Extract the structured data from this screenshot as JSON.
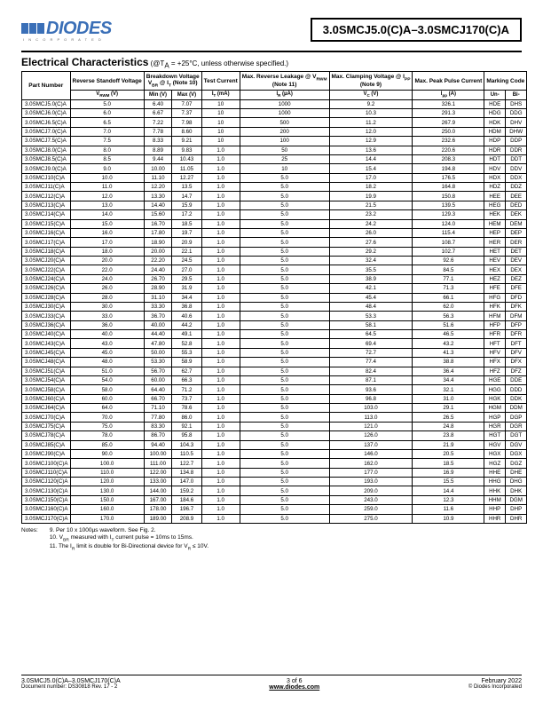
{
  "header": {
    "logo_text": "DIODES",
    "logo_sub": "I N C O R P O R A T E D",
    "part_title": "3.0SMCJ5.0(C)A–3.0SMCJ170(C)A"
  },
  "section": {
    "title": "Electrical Characteristics",
    "conditions": " (@T",
    "conditions_sub": "A",
    "conditions_rest": " = +25°C, unless otherwise specified.)"
  },
  "columns": {
    "part": "Part Number",
    "vrwm_h": "Reverse Standoff Voltage",
    "break_h": "Breakdown Voltage",
    "break_sub": "V",
    "break_sub2": "BR",
    "break_sub3": " @ I",
    "break_sub4": "T",
    "break_sub5": " (Note 10)",
    "test_h": "Test Current",
    "leak_h": "Max. Reverse Leakage @ V",
    "leak_sub": "RWM",
    "leak_note": "(Note 11)",
    "clamp_h": "Max. Clamping Voltage @ I",
    "clamp_sub": "PP",
    "clamp_note": "(Note 9)",
    "peak_h": "Max. Peak Pulse Current",
    "mark_h": "Marking Code",
    "vrwm": "V",
    "vrwm_s": "RWM",
    "vrwm_u": " (V)",
    "min": "Min (V)",
    "max": "Max (V)",
    "it": "I",
    "it_s": "T",
    "it_u": " (mA)",
    "ir": "I",
    "ir_s": "R",
    "ir_u": " (µA)",
    "vc": "V",
    "vc_s": "C",
    "vc_u": " (V)",
    "ipp": "I",
    "ipp_s": "pp",
    "ipp_u": " (A)",
    "un": "Un-",
    "bi": "Bi-"
  },
  "rows": [
    [
      "3.0SMCJ5.0(C)A",
      "5.0",
      "6.40",
      "7.07",
      "10",
      "1000",
      "9.2",
      "326.1",
      "HDE",
      "DHS"
    ],
    [
      "3.0SMCJ6.0(C)A",
      "6.0",
      "6.67",
      "7.37",
      "10",
      "1000",
      "10.3",
      "291.3",
      "HDG",
      "DDG"
    ],
    [
      "3.0SMCJ6.5(C)A",
      "6.5",
      "7.22",
      "7.98",
      "10",
      "500",
      "11.2",
      "267.9",
      "HDK",
      "DHV"
    ],
    [
      "3.0SMCJ7.0(C)A",
      "7.0",
      "7.78",
      "8.60",
      "10",
      "200",
      "12.0",
      "250.0",
      "HDM",
      "DHW"
    ],
    [
      "3.0SMCJ7.5(C)A",
      "7.5",
      "8.33",
      "9.21",
      "10",
      "100",
      "12.9",
      "232.6",
      "HDP",
      "DDP"
    ],
    [
      "3.0SMCJ8.0(C)A",
      "8.0",
      "8.89",
      "9.83",
      "1.0",
      "50",
      "13.6",
      "220.6",
      "HDR",
      "DDR"
    ],
    [
      "3.0SMCJ8.5(C)A",
      "8.5",
      "9.44",
      "10.43",
      "1.0",
      "25",
      "14.4",
      "208.3",
      "HDT",
      "DDT"
    ],
    [
      "3.0SMCJ9.0(C)A",
      "9.0",
      "10.00",
      "11.05",
      "1.0",
      "10",
      "15.4",
      "194.8",
      "HDV",
      "DDV"
    ],
    [
      "3.0SMCJ10(C)A",
      "10.0",
      "11.10",
      "12.27",
      "1.0",
      "5.0",
      "17.0",
      "176.5",
      "HDX",
      "DDX"
    ],
    [
      "3.0SMCJ11(C)A",
      "11.0",
      "12.20",
      "13.5",
      "1.0",
      "5.0",
      "18.2",
      "164.8",
      "HDZ",
      "DDZ"
    ],
    [
      "3.0SMCJ12(C)A",
      "12.0",
      "13.30",
      "14.7",
      "1.0",
      "5.0",
      "19.9",
      "150.8",
      "HEE",
      "DEE"
    ],
    [
      "3.0SMCJ13(C)A",
      "13.0",
      "14.40",
      "15.9",
      "1.0",
      "5.0",
      "21.5",
      "139.5",
      "HEG",
      "DED"
    ],
    [
      "3.0SMCJ14(C)A",
      "14.0",
      "15.60",
      "17.2",
      "1.0",
      "5.0",
      "23.2",
      "129.3",
      "HEK",
      "DEK"
    ],
    [
      "3.0SMCJ15(C)A",
      "15.0",
      "16.70",
      "18.5",
      "1.0",
      "5.0",
      "24.2",
      "124.0",
      "HEM",
      "DEM"
    ],
    [
      "3.0SMCJ16(C)A",
      "16.0",
      "17.80",
      "19.7",
      "1.0",
      "5.0",
      "26.0",
      "115.4",
      "HEP",
      "DEP"
    ],
    [
      "3.0SMCJ17(C)A",
      "17.0",
      "18.90",
      "20.9",
      "1.0",
      "5.0",
      "27.6",
      "108.7",
      "HER",
      "DER"
    ],
    [
      "3.0SMCJ18(C)A",
      "18.0",
      "20.00",
      "22.1",
      "1.0",
      "5.0",
      "29.2",
      "102.7",
      "HET",
      "DET"
    ],
    [
      "3.0SMCJ20(C)A",
      "20.0",
      "22.20",
      "24.5",
      "1.0",
      "5.0",
      "32.4",
      "92.6",
      "HEV",
      "DEV"
    ],
    [
      "3.0SMCJ22(C)A",
      "22.0",
      "24.40",
      "27.0",
      "1.0",
      "5.0",
      "35.5",
      "84.5",
      "HEX",
      "DEX"
    ],
    [
      "3.0SMCJ24(C)A",
      "24.0",
      "26.70",
      "29.5",
      "1.0",
      "5.0",
      "38.9",
      "77.1",
      "HEZ",
      "DEZ"
    ],
    [
      "3.0SMCJ26(C)A",
      "26.0",
      "28.90",
      "31.9",
      "1.0",
      "5.0",
      "42.1",
      "71.3",
      "HFE",
      "DFE"
    ],
    [
      "3.0SMCJ28(C)A",
      "28.0",
      "31.10",
      "34.4",
      "1.0",
      "5.0",
      "45.4",
      "66.1",
      "HFG",
      "DFD"
    ],
    [
      "3.0SMCJ30(C)A",
      "30.0",
      "33.30",
      "36.8",
      "1.0",
      "5.0",
      "48.4",
      "62.0",
      "HFK",
      "DFK"
    ],
    [
      "3.0SMCJ33(C)A",
      "33.0",
      "36.70",
      "40.6",
      "1.0",
      "5.0",
      "53.3",
      "56.3",
      "HFM",
      "DFM"
    ],
    [
      "3.0SMCJ36(C)A",
      "36.0",
      "40.00",
      "44.2",
      "1.0",
      "5.0",
      "58.1",
      "51.6",
      "HFP",
      "DFP"
    ],
    [
      "3.0SMCJ40(C)A",
      "40.0",
      "44.40",
      "49.1",
      "1.0",
      "5.0",
      "64.5",
      "46.5",
      "HFR",
      "DFR"
    ],
    [
      "3.0SMCJ43(C)A",
      "43.0",
      "47.80",
      "52.8",
      "1.0",
      "5.0",
      "69.4",
      "43.2",
      "HFT",
      "DFT"
    ],
    [
      "3.0SMCJ45(C)A",
      "45.0",
      "50.00",
      "55.3",
      "1.0",
      "5.0",
      "72.7",
      "41.3",
      "HFV",
      "DFV"
    ],
    [
      "3.0SMCJ48(C)A",
      "48.0",
      "53.30",
      "58.9",
      "1.0",
      "5.0",
      "77.4",
      "38.8",
      "HFX",
      "DFX"
    ],
    [
      "3.0SMCJ51(C)A",
      "51.0",
      "56.70",
      "62.7",
      "1.0",
      "5.0",
      "82.4",
      "36.4",
      "HFZ",
      "DFZ"
    ],
    [
      "3.0SMCJ54(C)A",
      "54.0",
      "60.00",
      "66.3",
      "1.0",
      "5.0",
      "87.1",
      "34.4",
      "HGE",
      "DDE"
    ],
    [
      "3.0SMCJ58(C)A",
      "58.0",
      "64.40",
      "71.2",
      "1.0",
      "5.0",
      "93.6",
      "32.1",
      "HGG",
      "DDD"
    ],
    [
      "3.0SMCJ60(C)A",
      "60.0",
      "66.70",
      "73.7",
      "1.0",
      "5.0",
      "96.8",
      "31.0",
      "HGK",
      "DDK"
    ],
    [
      "3.0SMCJ64(C)A",
      "64.0",
      "71.10",
      "78.6",
      "1.0",
      "5.0",
      "103.0",
      "29.1",
      "HGM",
      "DDM"
    ],
    [
      "3.0SMCJ70(C)A",
      "70.0",
      "77.80",
      "86.0",
      "1.0",
      "5.0",
      "113.0",
      "26.5",
      "HGP",
      "DGP"
    ],
    [
      "3.0SMCJ75(C)A",
      "75.0",
      "83.30",
      "92.1",
      "1.0",
      "5.0",
      "121.0",
      "24.8",
      "HGR",
      "DGR"
    ],
    [
      "3.0SMCJ78(C)A",
      "78.0",
      "86.70",
      "95.8",
      "1.0",
      "5.0",
      "126.0",
      "23.8",
      "HGT",
      "DGT"
    ],
    [
      "3.0SMCJ85(C)A",
      "85.0",
      "94.40",
      "104.3",
      "1.0",
      "5.0",
      "137.0",
      "21.9",
      "HGV",
      "DGV"
    ],
    [
      "3.0SMCJ90(C)A",
      "90.0",
      "100.00",
      "110.5",
      "1.0",
      "5.0",
      "146.0",
      "20.5",
      "HGX",
      "DGX"
    ],
    [
      "3.0SMCJ100(C)A",
      "100.0",
      "111.00",
      "122.7",
      "1.0",
      "5.0",
      "162.0",
      "18.5",
      "HGZ",
      "DGZ"
    ],
    [
      "3.0SMCJ110(C)A",
      "110.0",
      "122.00",
      "134.8",
      "1.0",
      "5.0",
      "177.0",
      "16.9",
      "HHE",
      "DHE"
    ],
    [
      "3.0SMCJ120(C)A",
      "120.0",
      "133.00",
      "147.0",
      "1.0",
      "5.0",
      "193.0",
      "15.5",
      "HHG",
      "DHG"
    ],
    [
      "3.0SMCJ130(C)A",
      "130.0",
      "144.00",
      "159.2",
      "1.0",
      "5.0",
      "209.0",
      "14.4",
      "HHK",
      "DHK"
    ],
    [
      "3.0SMCJ150(C)A",
      "150.0",
      "167.00",
      "184.6",
      "1.0",
      "5.0",
      "243.0",
      "12.3",
      "HHM",
      "DGM"
    ],
    [
      "3.0SMCJ160(C)A",
      "160.0",
      "178.00",
      "196.7",
      "1.0",
      "5.0",
      "259.0",
      "11.6",
      "HHP",
      "DHP"
    ],
    [
      "3.0SMCJ170(C)A",
      "170.0",
      "189.00",
      "208.9",
      "1.0",
      "5.0",
      "275.0",
      "10.9",
      "HHR",
      "DHR"
    ]
  ],
  "notes": {
    "label": "Notes:",
    "n9": "9. Per 10 x 1000µs waveform. See Fig. 2.",
    "n10a": "10. V",
    "n10b": "BR",
    "n10c": " measured with I",
    "n10d": "T",
    "n10e": " current pulse = 10ms to 15ms.",
    "n11a": "11. The I",
    "n11b": "R",
    "n11c": " limit is double for Bi-Directional device for V",
    "n11d": "R",
    "n11e": " ≤ 10V."
  },
  "footer": {
    "left1": "3.0SMCJ5.0(C)A–3.0SMCJ170(C)A",
    "left2": "Document number: DS30818 Rev. 17 - 2",
    "center1": "3 of 6",
    "center2": "www.diodes.com",
    "right1": "February 2022",
    "right2": "© Diodes Incorporated"
  }
}
